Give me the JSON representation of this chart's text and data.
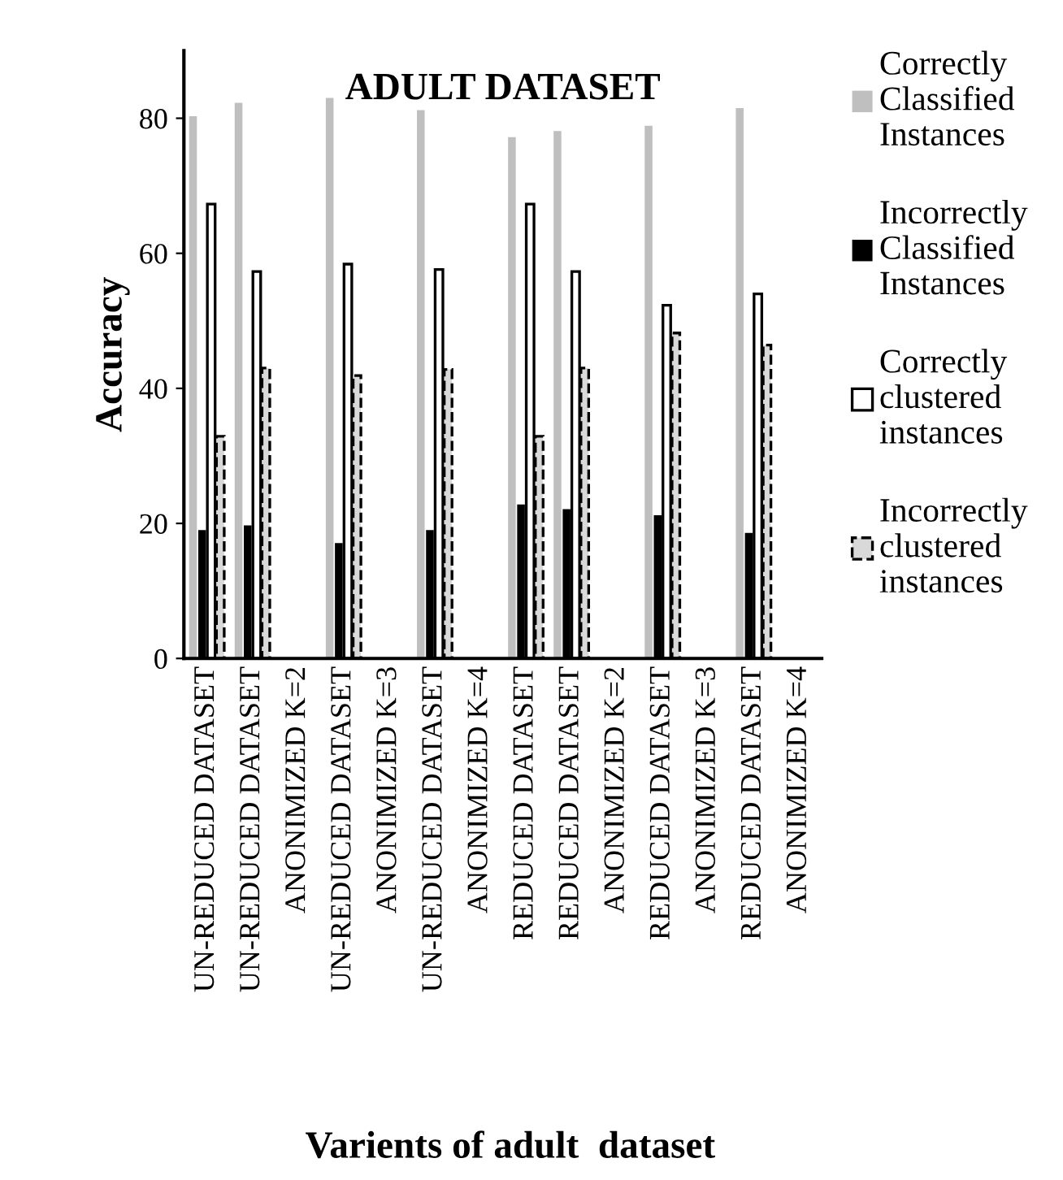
{
  "chart_data": {
    "type": "bar",
    "title": "ADULT DATASET",
    "xlabel": "Varients of adult  dataset",
    "ylabel": "Accuracy",
    "categories": [
      "UN-REDUCED DATASET",
      "UN-REDUCED DATASET",
      "ANONIMIZED K=2",
      "UN-REDUCED DATASET",
      "ANONIMIZED K=3",
      "UN-REDUCED DATASET",
      "ANONIMIZED K=4",
      "REDUCED DATASET",
      "REDUCED DATASET",
      "ANONIMIZED K=2",
      "REDUCED DATASET",
      "ANONIMIZED K=3",
      "REDUCED DATASET",
      "ANONIMIZED K=4"
    ],
    "series": [
      {
        "name": "Correctly Classified Instances",
        "color": "#bfbfbf",
        "values": [
          80.3,
          82.3,
          null,
          83.0,
          null,
          81.2,
          null,
          77.2,
          78.1,
          null,
          78.9,
          null,
          81.5,
          null
        ]
      },
      {
        "name": "Incorrectly Classified Instances",
        "color": "#000000",
        "values": [
          19.0,
          19.7,
          null,
          17.1,
          null,
          19.0,
          null,
          22.8,
          22.1,
          null,
          21.2,
          null,
          18.6,
          null
        ]
      },
      {
        "name": "Correctly clustered instances",
        "color": "#ffffff",
        "line_style": "solid",
        "values": [
          67.3,
          57.3,
          null,
          58.4,
          null,
          57.6,
          null,
          67.3,
          57.3,
          null,
          52.3,
          null,
          54.0,
          null
        ]
      },
      {
        "name": "Incorrectly clustered instances",
        "color": "#d9d9d9",
        "line_style": "dashed",
        "values": [
          32.9,
          43.0,
          null,
          41.9,
          null,
          42.8,
          null,
          32.9,
          43.0,
          null,
          48.2,
          null,
          46.4,
          null
        ]
      }
    ],
    "ylim": [
      0,
      90
    ],
    "yticks": [
      0,
      20,
      40,
      60,
      80
    ],
    "grid": false,
    "legend": "top right"
  }
}
